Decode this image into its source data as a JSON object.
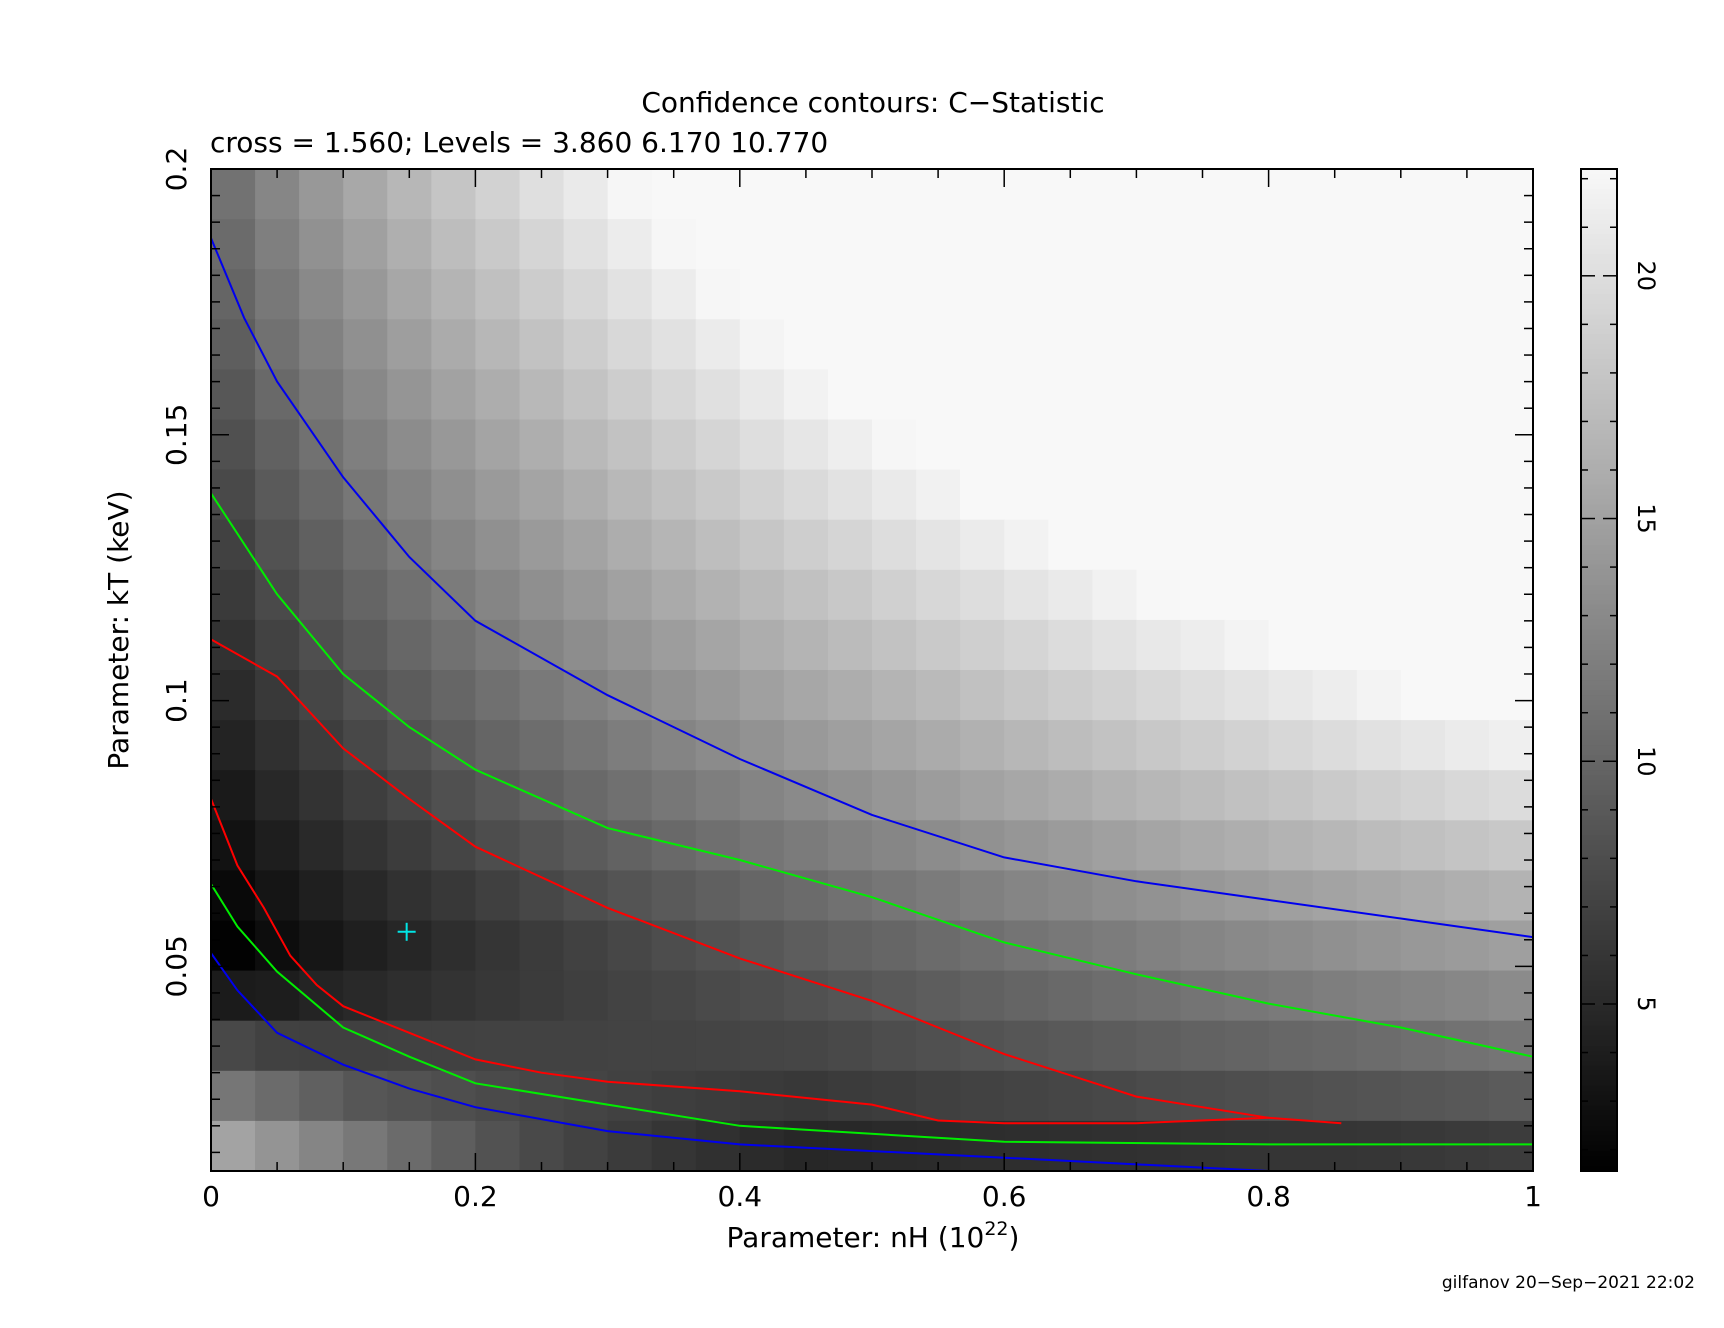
{
  "chart_data": {
    "type": "heatmap",
    "title": "Confidence contours: C−Statistic",
    "subtitle": "cross = 1.560; Levels =  3.860 6.170 10.770",
    "xlabel": "Parameter: nH (10",
    "xlabel_sup": "22",
    "xlabel_close": ")",
    "ylabel": "Parameter: kT (keV)",
    "xlim": [
      0,
      1
    ],
    "ylim": [
      0.0115,
      0.2
    ],
    "x_ticks": [
      {
        "value": 0,
        "label": "0"
      },
      {
        "value": 0.2,
        "label": "0.2"
      },
      {
        "value": 0.4,
        "label": "0.4"
      },
      {
        "value": 0.6,
        "label": "0.6"
      },
      {
        "value": 0.8,
        "label": "0.8"
      },
      {
        "value": 1,
        "label": "1"
      }
    ],
    "y_ticks": [
      {
        "value": 0.05,
        "label": "0.05"
      },
      {
        "value": 0.1,
        "label": "0.1"
      },
      {
        "value": 0.15,
        "label": "0.15"
      },
      {
        "value": 0.2,
        "label": "0.2"
      }
    ],
    "colorbar": {
      "range": [
        1.56,
        22.2
      ],
      "ticks": [
        {
          "value": 5,
          "label": "5"
        },
        {
          "value": 10,
          "label": "10"
        },
        {
          "value": 15,
          "label": "15"
        },
        {
          "value": 20,
          "label": "20"
        }
      ]
    },
    "grid": {
      "nx": 30,
      "ny": 20,
      "cell_min": 1.56,
      "cell_max": 22.2
    },
    "best_fit": {
      "x": 0.148,
      "y": 0.0565,
      "color": "#00e5e5"
    },
    "contours": [
      {
        "level": 3.86,
        "color": "#ff0000",
        "points": [
          [
            0,
            0.1115
          ],
          [
            0.05,
            0.1045
          ],
          [
            0.1,
            0.091
          ],
          [
            0.15,
            0.0815
          ],
          [
            0.2,
            0.0725
          ],
          [
            0.3,
            0.061
          ],
          [
            0.4,
            0.0515
          ],
          [
            0.5,
            0.0435
          ],
          [
            0.55,
            0.0385
          ],
          [
            0.6,
            0.0335
          ],
          [
            0.65,
            0.0295
          ],
          [
            0.7,
            0.0255
          ],
          [
            0.75,
            0.0235
          ],
          [
            0.8,
            0.0215
          ],
          [
            0.855,
            0.0205
          ],
          [
            0.8,
            0.0215
          ],
          [
            0.7,
            0.0205
          ],
          [
            0.6,
            0.0205
          ],
          [
            0.55,
            0.021
          ],
          [
            0.5,
            0.024
          ],
          [
            0.4,
            0.0265
          ],
          [
            0.3,
            0.0283
          ],
          [
            0.25,
            0.03
          ],
          [
            0.2,
            0.0325
          ],
          [
            0.15,
            0.0375
          ],
          [
            0.1,
            0.0425
          ],
          [
            0.08,
            0.0465
          ],
          [
            0.06,
            0.052
          ],
          [
            0.04,
            0.061
          ],
          [
            0.02,
            0.069
          ],
          [
            0,
            0.0815
          ]
        ]
      },
      {
        "level": 6.17,
        "color": "#00ee00",
        "points": [
          [
            0,
            0.139
          ],
          [
            0.05,
            0.12
          ],
          [
            0.1,
            0.105
          ],
          [
            0.15,
            0.095
          ],
          [
            0.2,
            0.087
          ],
          [
            0.3,
            0.076
          ],
          [
            0.4,
            0.07
          ],
          [
            0.5,
            0.063
          ],
          [
            0.6,
            0.0545
          ],
          [
            0.7,
            0.0485
          ],
          [
            0.8,
            0.043
          ],
          [
            0.9,
            0.0385
          ],
          [
            1,
            0.033
          ]
        ]
      },
      {
        "level": 6.17,
        "color": "#00ee00",
        "points": [
          [
            0,
            0.0655
          ],
          [
            0.02,
            0.0575
          ],
          [
            0.05,
            0.049
          ],
          [
            0.1,
            0.0385
          ],
          [
            0.15,
            0.033
          ],
          [
            0.2,
            0.028
          ],
          [
            0.3,
            0.024
          ],
          [
            0.4,
            0.02
          ],
          [
            0.6,
            0.017
          ],
          [
            0.8,
            0.0165
          ],
          [
            1,
            0.0165
          ]
        ]
      },
      {
        "level": 10.77,
        "color": "#0000ee",
        "points": [
          [
            0,
            0.187
          ],
          [
            0.025,
            0.172
          ],
          [
            0.05,
            0.16
          ],
          [
            0.1,
            0.142
          ],
          [
            0.15,
            0.127
          ],
          [
            0.2,
            0.115
          ],
          [
            0.3,
            0.101
          ],
          [
            0.4,
            0.089
          ],
          [
            0.5,
            0.0785
          ],
          [
            0.6,
            0.0705
          ],
          [
            0.7,
            0.066
          ],
          [
            0.8,
            0.0625
          ],
          [
            0.9,
            0.059
          ],
          [
            1,
            0.0555
          ]
        ]
      },
      {
        "level": 10.77,
        "color": "#0000ee",
        "points": [
          [
            0,
            0.0525
          ],
          [
            0.02,
            0.0455
          ],
          [
            0.05,
            0.0375
          ],
          [
            0.1,
            0.0315
          ],
          [
            0.15,
            0.027
          ],
          [
            0.2,
            0.0235
          ],
          [
            0.3,
            0.019
          ],
          [
            0.4,
            0.0165
          ],
          [
            0.6,
            0.014
          ],
          [
            0.8,
            0.0115
          ]
        ]
      }
    ]
  },
  "footer": "gilfanov 20−Sep−2021 22:02"
}
